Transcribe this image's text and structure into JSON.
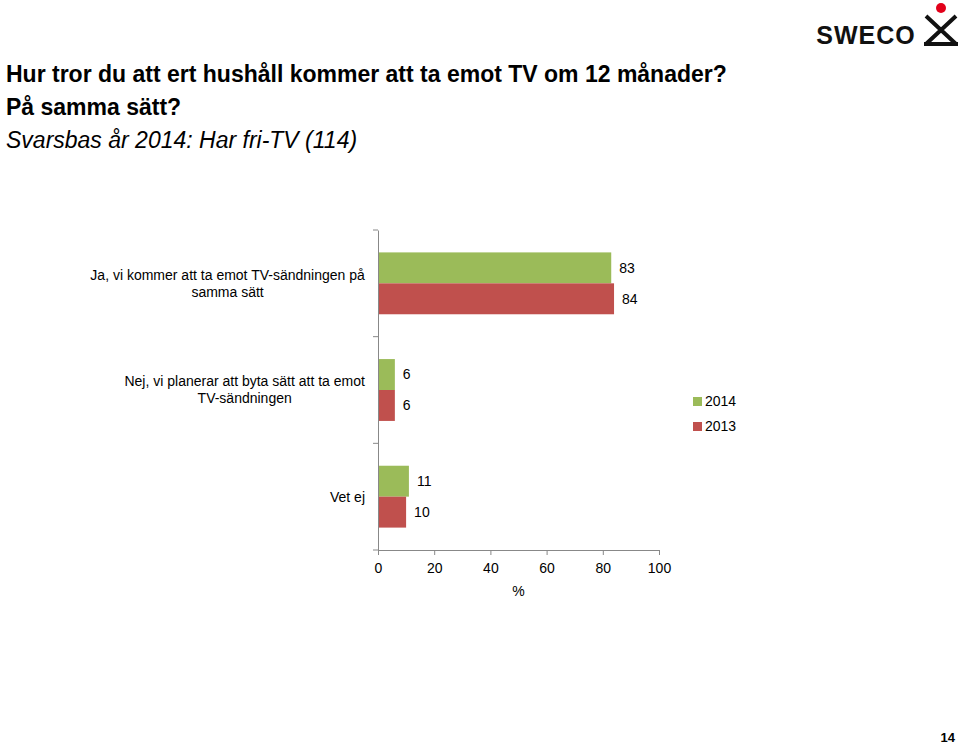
{
  "chart_data": {
    "type": "bar",
    "orientation": "horizontal",
    "title": [
      "Hur tror du att ert hushåll kommer att ta emot TV om 12 månader?",
      "På samma sätt?"
    ],
    "subtitle": "Svarsbas år 2014: Har fri-TV (114)",
    "annotations": [
      "SWECO",
      "14"
    ],
    "xlabel": "%",
    "categories": [
      "Ja, vi kommer att ta emot TV-sändningen på samma sätt",
      "Nej, vi planerar att byta sätt att ta emot TV-sändningen",
      "Vet ej"
    ],
    "series": [
      {
        "name": "2014",
        "color": "#9bbb59",
        "values": [
          83,
          6,
          11
        ]
      },
      {
        "name": "2013",
        "color": "#c0504d",
        "values": [
          84,
          6,
          10
        ]
      }
    ],
    "xlim": [
      0,
      100
    ],
    "xticks": [
      0,
      20,
      40,
      60,
      80,
      100
    ],
    "data_labels": true,
    "legend": "right"
  }
}
